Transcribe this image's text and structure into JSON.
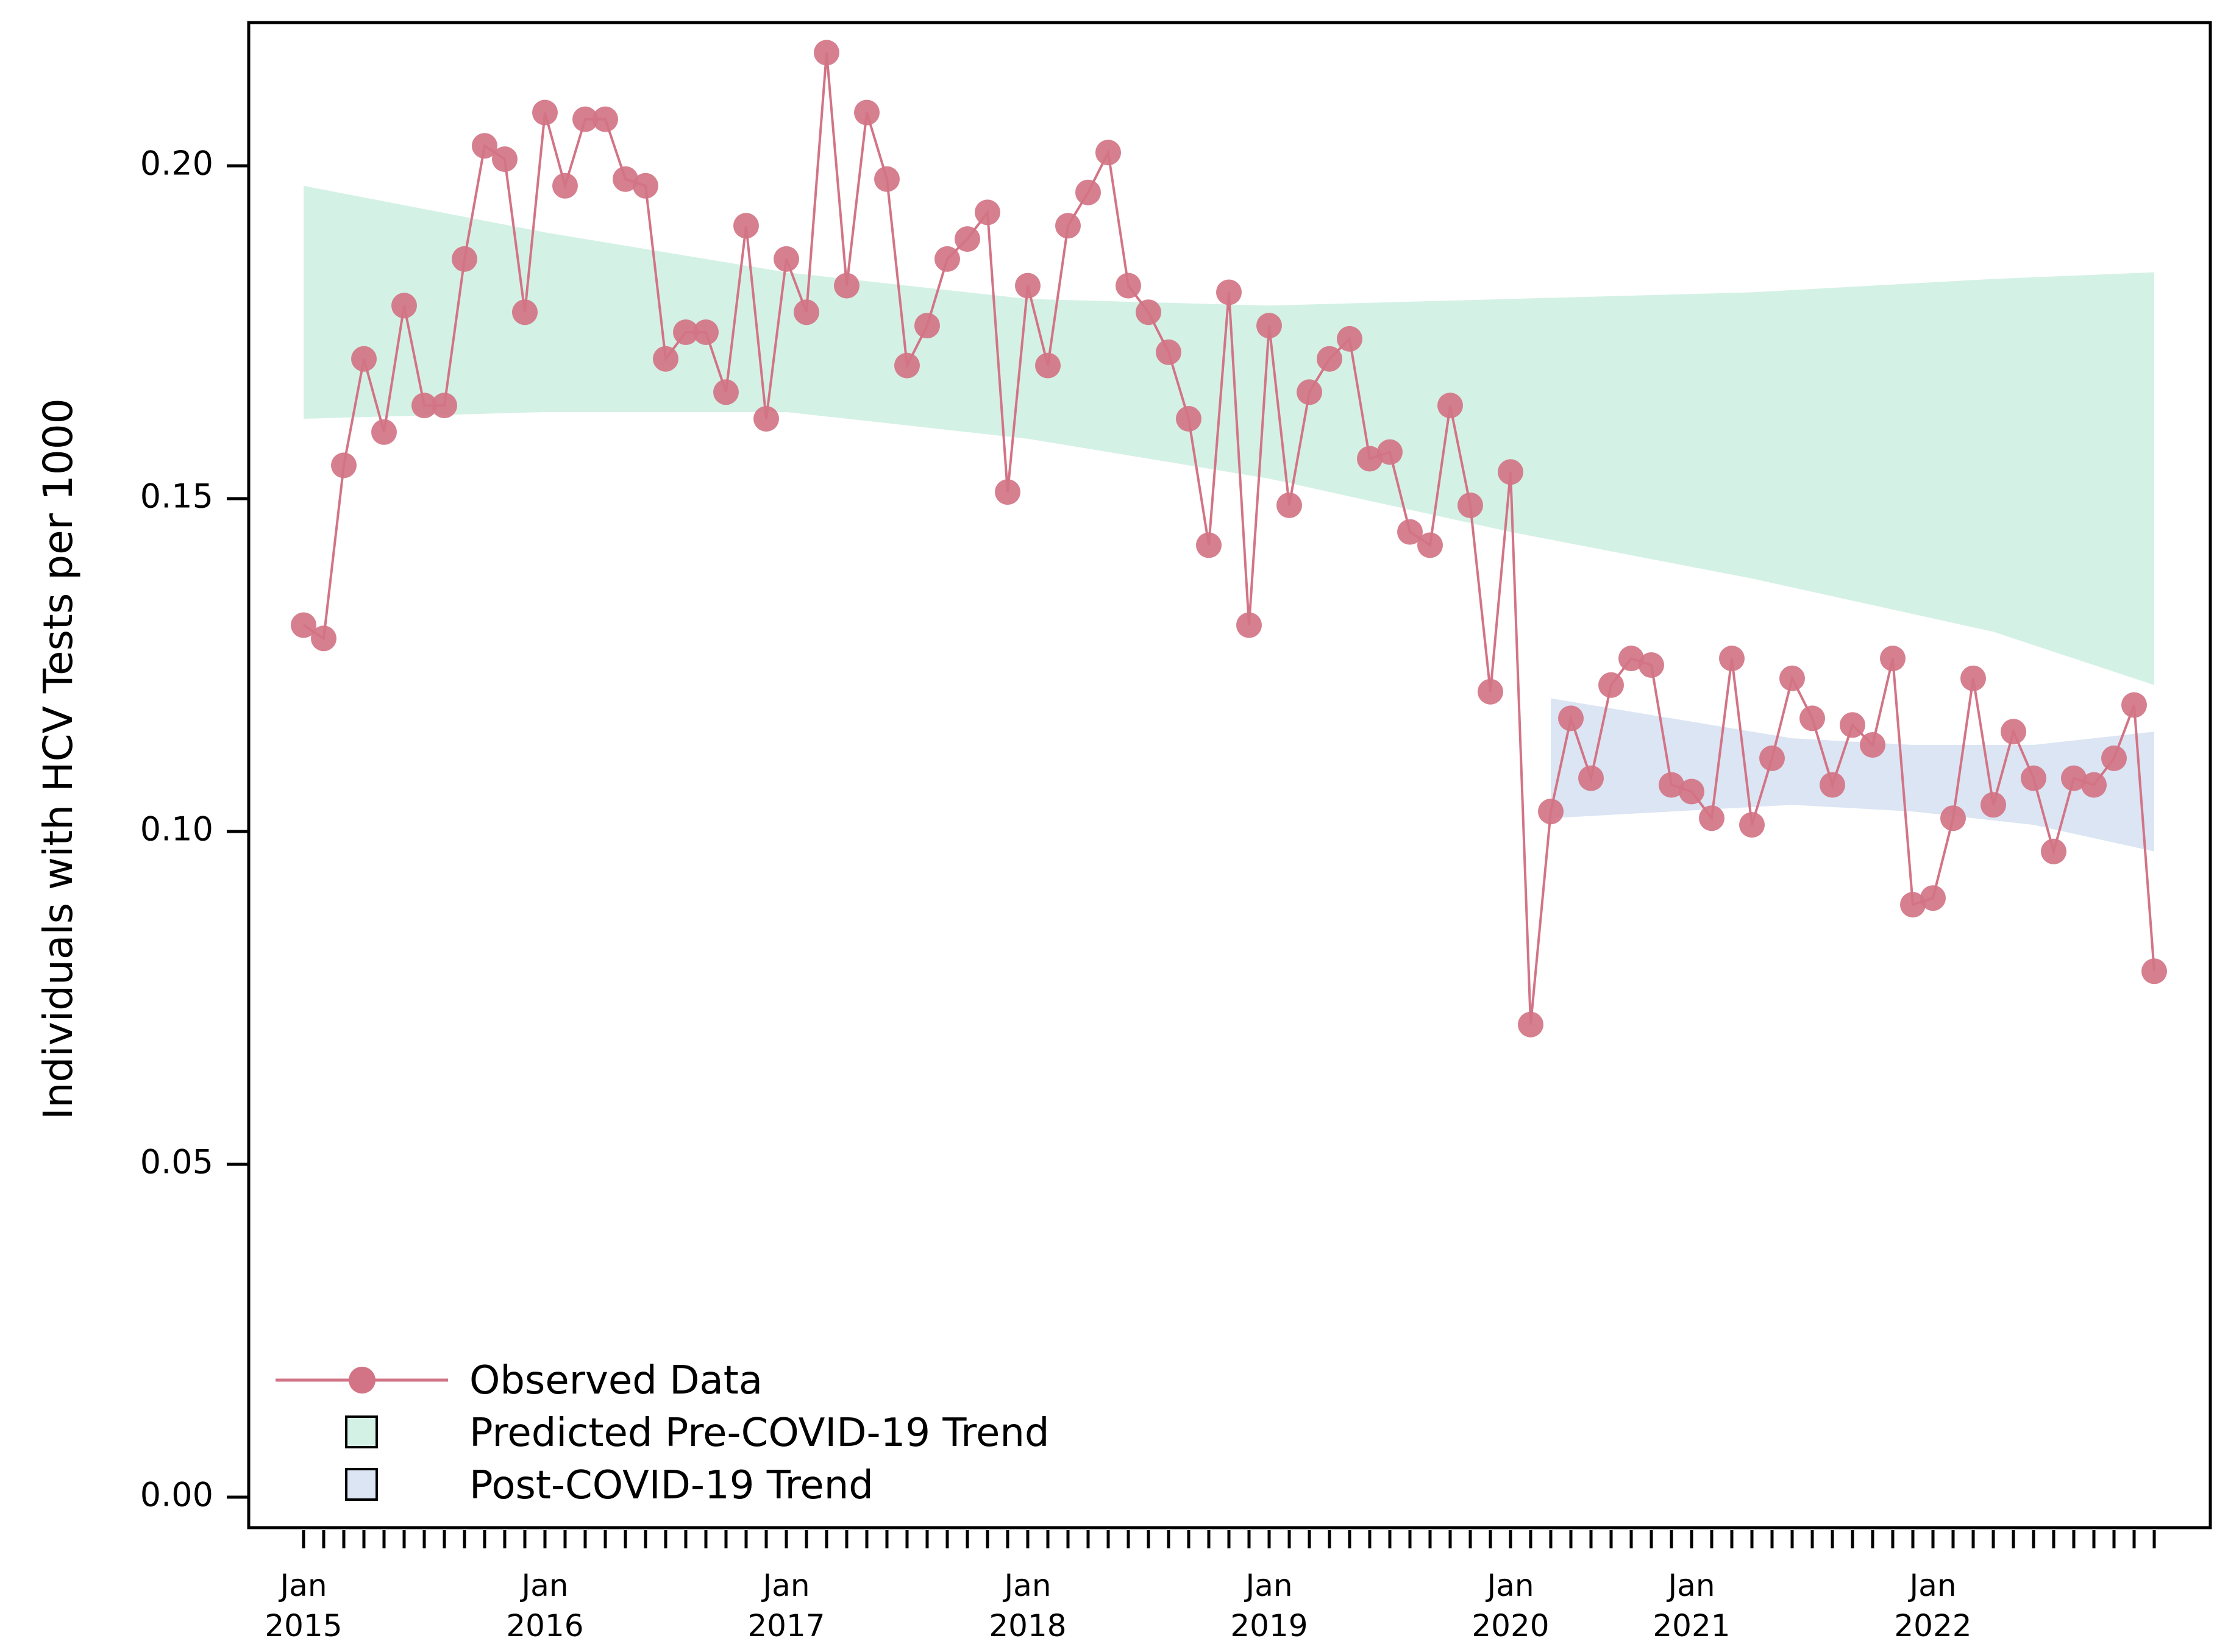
{
  "chart_data": {
    "type": "line",
    "title": "",
    "xlabel": "",
    "ylabel": "Individuals with HCV Tests per 1000",
    "ylim": [
      0.0,
      0.22
    ],
    "y_ticks": [
      "0.00",
      "0.05",
      "0.10",
      "0.15",
      "0.20"
    ],
    "y_tick_values": [
      0.0,
      0.05,
      0.1,
      0.15,
      0.2
    ],
    "x_tick_labels": [
      {
        "month": "Jan",
        "year": "2015",
        "index": 0
      },
      {
        "month": "Jan",
        "year": "2016",
        "index": 12
      },
      {
        "month": "Jan",
        "year": "2017",
        "index": 24
      },
      {
        "month": "Jan",
        "year": "2018",
        "index": 36
      },
      {
        "month": "Jan",
        "year": "2019",
        "index": 48
      },
      {
        "month": "Jan",
        "year": "2020",
        "index": 60
      },
      {
        "month": "Jan",
        "year": "2021",
        "index": 69
      },
      {
        "month": "Jan",
        "year": "2022",
        "index": 81
      }
    ],
    "n_months": 93,
    "series": [
      {
        "name": "Observed Data",
        "color": "#d27486",
        "values": [
          0.131,
          0.129,
          0.155,
          0.171,
          0.16,
          0.179,
          0.164,
          0.164,
          0.186,
          0.203,
          0.201,
          0.178,
          0.208,
          0.197,
          0.207,
          0.207,
          0.198,
          0.197,
          0.171,
          0.175,
          0.175,
          0.166,
          0.191,
          0.162,
          0.186,
          0.178,
          0.217,
          0.182,
          0.208,
          0.198,
          0.17,
          0.176,
          0.186,
          0.189,
          0.193,
          0.151,
          0.182,
          0.17,
          0.191,
          0.196,
          0.202,
          0.182,
          0.178,
          0.172,
          0.162,
          0.143,
          0.181,
          0.131,
          0.176,
          0.149,
          0.166,
          0.171,
          0.174,
          0.156,
          0.157,
          0.145,
          0.143,
          0.164,
          0.149,
          0.121,
          0.154,
          0.071,
          0.103,
          0.117,
          0.108,
          0.122,
          0.126,
          0.125,
          0.107,
          0.106,
          0.102,
          0.126,
          0.101,
          0.111,
          0.123,
          0.117,
          0.107,
          0.116,
          0.113,
          0.126,
          0.089,
          0.09,
          0.102,
          0.123,
          0.104,
          0.115,
          0.108,
          0.097,
          0.108,
          0.107,
          0.111,
          0.119,
          0.079
        ]
      }
    ],
    "bands": [
      {
        "name": "Predicted Pre-COVID-19 Trend",
        "color": "#d4f1e5",
        "start_index": 0,
        "end_index": 92,
        "lower": [
          [
            0,
            0.162
          ],
          [
            12,
            0.163
          ],
          [
            24,
            0.163
          ],
          [
            36,
            0.159
          ],
          [
            48,
            0.153
          ],
          [
            60,
            0.145
          ],
          [
            72,
            0.138
          ],
          [
            84,
            0.13
          ],
          [
            92,
            0.122
          ]
        ],
        "upper": [
          [
            0,
            0.197
          ],
          [
            12,
            0.19
          ],
          [
            24,
            0.184
          ],
          [
            36,
            0.18
          ],
          [
            48,
            0.179
          ],
          [
            60,
            0.18
          ],
          [
            72,
            0.181
          ],
          [
            84,
            0.183
          ],
          [
            92,
            0.184
          ]
        ]
      },
      {
        "name": "Post-COVID-19 Trend",
        "color": "#dbe5f3",
        "start_index": 62,
        "end_index": 92,
        "lower": [
          [
            62,
            0.102
          ],
          [
            68,
            0.103
          ],
          [
            74,
            0.104
          ],
          [
            80,
            0.103
          ],
          [
            86,
            0.101
          ],
          [
            92,
            0.097
          ]
        ],
        "upper": [
          [
            62,
            0.12
          ],
          [
            68,
            0.117
          ],
          [
            74,
            0.114
          ],
          [
            80,
            0.113
          ],
          [
            86,
            0.113
          ],
          [
            92,
            0.115
          ]
        ]
      }
    ],
    "legend": {
      "position": "bottom-left",
      "entries": [
        "Observed Data",
        "Predicted Pre-COVID-19 Trend",
        "Post-COVID-19 Trend"
      ]
    }
  }
}
